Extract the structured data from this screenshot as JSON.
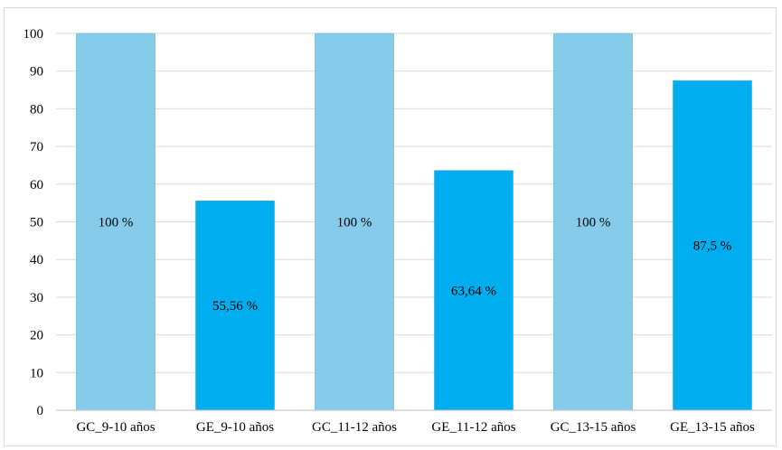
{
  "chart_data": {
    "type": "bar",
    "categories": [
      "GC_9-10 años",
      "GE_9-10 años",
      "GC_11-12 años",
      "GE_11-12 años",
      "GC_13-15 años",
      "GE_13-15 años"
    ],
    "values": [
      100,
      55.56,
      100,
      63.64,
      100,
      87.5
    ],
    "data_labels": [
      "100 %",
      "55,56 %",
      "100 %",
      "63,64 %",
      "100 %",
      "87,5 %"
    ],
    "colors": [
      "#86cbea",
      "#00aeef",
      "#86cbea",
      "#00aeef",
      "#86cbea",
      "#00aeef"
    ],
    "y_ticks": [
      "0",
      "10",
      "20",
      "30",
      "40",
      "50",
      "60",
      "70",
      "80",
      "90",
      "100"
    ],
    "ylim": [
      0,
      100
    ],
    "grid": true,
    "legend": "none"
  }
}
